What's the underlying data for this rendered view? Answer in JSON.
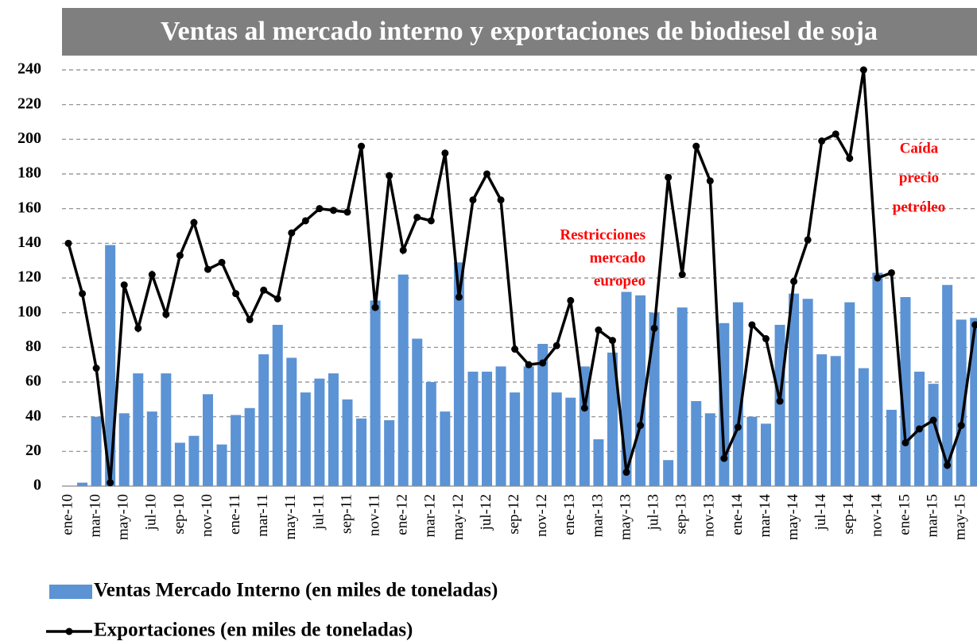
{
  "chart_data": {
    "type": "bar_line",
    "title": "Ventas al mercado interno y exportaciones de biodiesel de soja",
    "categories": [
      "ene-10",
      null,
      "mar-10",
      null,
      "may-10",
      null,
      "jul-10",
      null,
      "sep-10",
      null,
      "nov-10",
      null,
      "ene-11",
      null,
      "mar-11",
      null,
      "may-11",
      null,
      "jul-11",
      null,
      "sep-11",
      null,
      "nov-11",
      null,
      "ene-12",
      null,
      "mar-12",
      null,
      "may-12",
      null,
      "jul-12",
      null,
      "sep-12",
      null,
      "nov-12",
      null,
      "ene-13",
      null,
      "mar-13",
      null,
      "may-13",
      null,
      "jul-13",
      null,
      "sep-13",
      null,
      "nov-13",
      null,
      "ene-14",
      null,
      "mar-14",
      null,
      "may-14",
      null,
      "jul-14",
      null,
      "sep-14",
      null,
      "nov-14",
      null,
      "ene-15",
      null,
      "mar-15",
      null,
      "may-15",
      null
    ],
    "series": [
      {
        "name": "Ventas Mercado Interno (en miles de toneladas)",
        "kind": "bar",
        "color": "#5b93d5",
        "values": [
          0,
          2,
          40,
          139,
          42,
          65,
          43,
          65,
          25,
          29,
          53,
          24,
          41,
          45,
          76,
          93,
          74,
          54,
          62,
          65,
          50,
          39,
          107,
          38,
          122,
          85,
          60,
          43,
          129,
          66,
          66,
          69,
          54,
          69,
          82,
          54,
          51,
          69,
          27,
          77,
          112,
          110,
          100,
          15,
          103,
          49,
          42,
          94,
          106,
          40,
          36,
          93,
          111,
          108,
          76,
          75,
          106,
          68,
          123,
          44,
          109,
          66,
          59,
          116,
          96,
          97
        ]
      },
      {
        "name": "Exportaciones (en miles de toneladas)",
        "kind": "line",
        "color": "#000000",
        "values": [
          140,
          111,
          68,
          2,
          116,
          91,
          122,
          99,
          133,
          152,
          125,
          129,
          111,
          96,
          113,
          108,
          146,
          153,
          160,
          159,
          158,
          196,
          103,
          179,
          136,
          155,
          153,
          192,
          109,
          165,
          180,
          165,
          79,
          70,
          71,
          81,
          107,
          45,
          90,
          84,
          8,
          35,
          91,
          178,
          122,
          196,
          176,
          16,
          34,
          93,
          85,
          49,
          118,
          142,
          199,
          203,
          189,
          240,
          120,
          123,
          25,
          33,
          38,
          12,
          35,
          93
        ]
      }
    ],
    "ylim": [
      0,
      240
    ],
    "yticks": [
      0,
      20,
      40,
      60,
      80,
      100,
      120,
      140,
      160,
      180,
      200,
      220,
      240
    ],
    "grid": true,
    "annotations": [
      {
        "lines": [
          "Restricciones",
          "mercado",
          "europeo"
        ],
        "color": "#ff0000"
      },
      {
        "lines": [
          "Caída",
          "precio",
          "petróleo"
        ],
        "color": "#ff0000"
      }
    ]
  }
}
